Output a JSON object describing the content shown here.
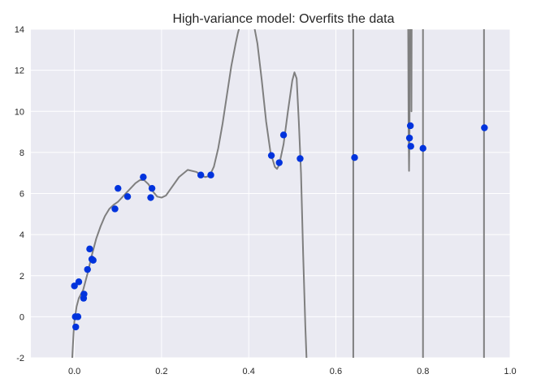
{
  "chart_data": {
    "type": "scatter",
    "title": "High-variance model: Overfits the data",
    "xlabel": "",
    "ylabel": "",
    "xlim": [
      -0.1,
      1.0
    ],
    "ylim": [
      -2,
      14
    ],
    "x_ticks": [
      "0.0",
      "0.2",
      "0.4",
      "0.6",
      "0.8",
      "1.0"
    ],
    "y_ticks": [
      "-2",
      "0",
      "2",
      "4",
      "6",
      "8",
      "10",
      "12",
      "14"
    ],
    "grid": true,
    "colors": {
      "background": "#EAEAF2",
      "grid": "#FFFFFF",
      "points": "#0033DD",
      "curve": "#7F7F7F"
    },
    "series": [
      {
        "kind": "points",
        "values": [
          {
            "x": 0.0,
            "y": 1.5
          },
          {
            "x": 0.002,
            "y": 0.0
          },
          {
            "x": 0.003,
            "y": -0.5
          },
          {
            "x": 0.008,
            "y": 0.0
          },
          {
            "x": 0.01,
            "y": 1.7
          },
          {
            "x": 0.021,
            "y": 0.9
          },
          {
            "x": 0.022,
            "y": 1.1
          },
          {
            "x": 0.03,
            "y": 2.3
          },
          {
            "x": 0.035,
            "y": 3.3
          },
          {
            "x": 0.04,
            "y": 2.8
          },
          {
            "x": 0.043,
            "y": 2.75
          },
          {
            "x": 0.093,
            "y": 5.25
          },
          {
            "x": 0.1,
            "y": 6.25
          },
          {
            "x": 0.122,
            "y": 5.85
          },
          {
            "x": 0.158,
            "y": 6.8
          },
          {
            "x": 0.175,
            "y": 5.8
          },
          {
            "x": 0.178,
            "y": 6.25
          },
          {
            "x": 0.29,
            "y": 6.9
          },
          {
            "x": 0.313,
            "y": 6.9
          },
          {
            "x": 0.452,
            "y": 7.85
          },
          {
            "x": 0.47,
            "y": 7.5
          },
          {
            "x": 0.48,
            "y": 8.85
          },
          {
            "x": 0.518,
            "y": 7.7
          },
          {
            "x": 0.643,
            "y": 7.75
          },
          {
            "x": 0.769,
            "y": 8.7
          },
          {
            "x": 0.771,
            "y": 9.3
          },
          {
            "x": 0.772,
            "y": 8.3
          },
          {
            "x": 0.8,
            "y": 8.2
          },
          {
            "x": 0.941,
            "y": 9.2
          }
        ]
      },
      {
        "kind": "fitted-curve",
        "values": [
          {
            "x": -0.005,
            "y": -2.0
          },
          {
            "x": -0.002,
            "y": -0.8
          },
          {
            "x": 0.0,
            "y": -0.2
          },
          {
            "x": 0.005,
            "y": 0.5
          },
          {
            "x": 0.01,
            "y": 0.9
          },
          {
            "x": 0.02,
            "y": 1.3
          },
          {
            "x": 0.03,
            "y": 2.1
          },
          {
            "x": 0.04,
            "y": 3.0
          },
          {
            "x": 0.05,
            "y": 3.8
          },
          {
            "x": 0.06,
            "y": 4.4
          },
          {
            "x": 0.07,
            "y": 4.9
          },
          {
            "x": 0.08,
            "y": 5.25
          },
          {
            "x": 0.09,
            "y": 5.45
          },
          {
            "x": 0.1,
            "y": 5.6
          },
          {
            "x": 0.12,
            "y": 6.05
          },
          {
            "x": 0.14,
            "y": 6.5
          },
          {
            "x": 0.15,
            "y": 6.65
          },
          {
            "x": 0.16,
            "y": 6.65
          },
          {
            "x": 0.17,
            "y": 6.45
          },
          {
            "x": 0.18,
            "y": 6.1
          },
          {
            "x": 0.19,
            "y": 5.85
          },
          {
            "x": 0.2,
            "y": 5.8
          },
          {
            "x": 0.21,
            "y": 5.9
          },
          {
            "x": 0.22,
            "y": 6.2
          },
          {
            "x": 0.24,
            "y": 6.8
          },
          {
            "x": 0.26,
            "y": 7.15
          },
          {
            "x": 0.28,
            "y": 7.05
          },
          {
            "x": 0.29,
            "y": 6.9
          },
          {
            "x": 0.3,
            "y": 6.8
          },
          {
            "x": 0.31,
            "y": 6.85
          },
          {
            "x": 0.32,
            "y": 7.3
          },
          {
            "x": 0.33,
            "y": 8.2
          },
          {
            "x": 0.34,
            "y": 9.4
          },
          {
            "x": 0.35,
            "y": 10.8
          },
          {
            "x": 0.36,
            "y": 12.2
          },
          {
            "x": 0.37,
            "y": 13.3
          },
          {
            "x": 0.375,
            "y": 13.8
          },
          {
            "x": 0.38,
            "y": 14.2
          },
          {
            "x": 0.412,
            "y": 14.2
          },
          {
            "x": 0.42,
            "y": 13.3
          },
          {
            "x": 0.43,
            "y": 11.5
          },
          {
            "x": 0.44,
            "y": 9.5
          },
          {
            "x": 0.45,
            "y": 8.0
          },
          {
            "x": 0.46,
            "y": 7.3
          },
          {
            "x": 0.465,
            "y": 7.2
          },
          {
            "x": 0.47,
            "y": 7.4
          },
          {
            "x": 0.48,
            "y": 8.4
          },
          {
            "x": 0.49,
            "y": 10.0
          },
          {
            "x": 0.5,
            "y": 11.5
          },
          {
            "x": 0.505,
            "y": 11.9
          },
          {
            "x": 0.51,
            "y": 11.6
          },
          {
            "x": 0.515,
            "y": 9.5
          },
          {
            "x": 0.52,
            "y": 7.0
          },
          {
            "x": 0.525,
            "y": 3.0
          },
          {
            "x": 0.53,
            "y": -0.5
          },
          {
            "x": 0.533,
            "y": -2.2
          }
        ]
      },
      {
        "kind": "fitted-curve",
        "values": [
          {
            "x": 0.64,
            "y": -2.2
          },
          {
            "x": 0.64,
            "y": 14.2
          }
        ]
      },
      {
        "kind": "fitted-curve",
        "values": [
          {
            "x": 0.766,
            "y": 14.2
          },
          {
            "x": 0.767,
            "y": 9.0
          },
          {
            "x": 0.768,
            "y": 7.1
          },
          {
            "x": 0.769,
            "y": 9.0
          },
          {
            "x": 0.77,
            "y": 14.2
          }
        ]
      },
      {
        "kind": "fitted-curve",
        "values": [
          {
            "x": 0.773,
            "y": 14.2
          },
          {
            "x": 0.7735,
            "y": 10.0
          },
          {
            "x": 0.774,
            "y": 14.2
          }
        ]
      },
      {
        "kind": "fitted-curve",
        "values": [
          {
            "x": 0.8,
            "y": 14.2
          },
          {
            "x": 0.8,
            "y": -2.2
          }
        ]
      },
      {
        "kind": "fitted-curve",
        "values": [
          {
            "x": 0.94,
            "y": 14.2
          },
          {
            "x": 0.94,
            "y": -2.2
          }
        ]
      }
    ]
  }
}
